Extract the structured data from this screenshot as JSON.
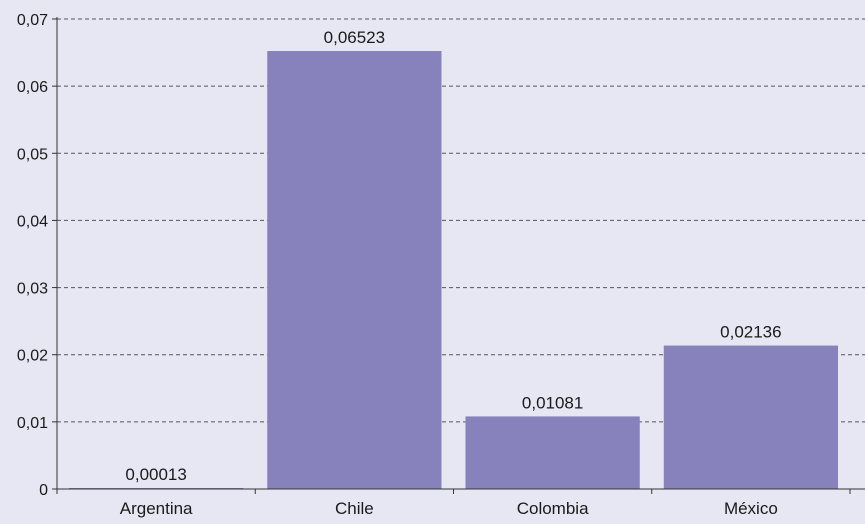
{
  "chart_data": {
    "type": "bar",
    "categories": [
      "Argentina",
      "Chile",
      "Colombia",
      "México"
    ],
    "values": [
      0.00013,
      0.06523,
      0.01081,
      0.02136
    ],
    "value_labels": [
      "0,00013",
      "0,06523",
      "0,01081",
      "0,02136"
    ],
    "ylim": [
      0,
      0.07
    ],
    "yticks": [
      0,
      0.01,
      0.02,
      0.03,
      0.04,
      0.05,
      0.06,
      0.07
    ],
    "ytick_labels": [
      "0",
      "0,01",
      "0,02",
      "0,03",
      "0,04",
      "0,05",
      "0,06",
      "0,07"
    ],
    "grid": true,
    "colors": {
      "bar": "#8882bc",
      "background": "#e6e7f3",
      "grid": "#555555",
      "axis": "#333333"
    }
  }
}
